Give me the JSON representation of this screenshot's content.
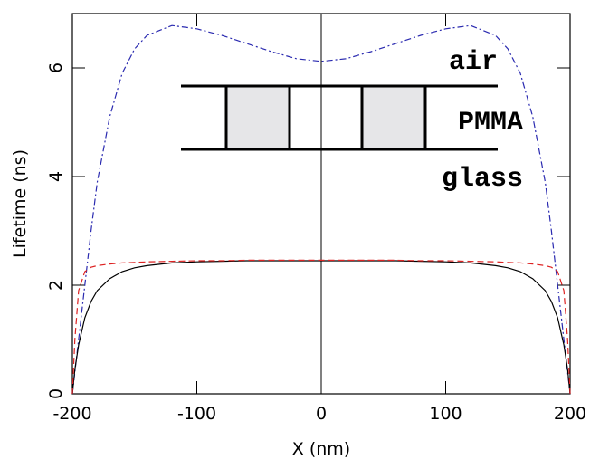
{
  "chart_data": {
    "type": "line",
    "xlabel": "X (nm)",
    "ylabel": "Lifetime (ns)",
    "x": [
      -200,
      -198,
      -195,
      -190,
      -185,
      -180,
      -170,
      -160,
      -150,
      -140,
      -120,
      -100,
      -80,
      -60,
      -40,
      -20,
      0,
      20,
      40,
      60,
      80,
      100,
      120,
      140,
      150,
      160,
      170,
      180,
      185,
      190,
      195,
      198,
      200
    ],
    "series": [
      {
        "color": "#2a2ab0",
        "dash": "dashdot",
        "values": [
          0,
          0.4,
          1.0,
          2.0,
          3.0,
          3.9,
          5.1,
          5.9,
          6.35,
          6.6,
          6.78,
          6.72,
          6.6,
          6.45,
          6.3,
          6.17,
          6.12,
          6.17,
          6.3,
          6.45,
          6.6,
          6.72,
          6.78,
          6.6,
          6.35,
          5.9,
          5.1,
          3.9,
          3.0,
          2.0,
          1.0,
          0.4,
          0
        ]
      },
      {
        "color": "#000000",
        "dash": "solid",
        "values": [
          0,
          0.45,
          0.9,
          1.4,
          1.7,
          1.9,
          2.12,
          2.25,
          2.32,
          2.36,
          2.41,
          2.43,
          2.44,
          2.45,
          2.45,
          2.45,
          2.45,
          2.45,
          2.45,
          2.45,
          2.44,
          2.43,
          2.41,
          2.36,
          2.32,
          2.25,
          2.12,
          1.9,
          1.7,
          1.4,
          0.9,
          0.45,
          0
        ]
      },
      {
        "color": "#dd2222",
        "dash": "dashed",
        "values": [
          0,
          1.0,
          1.9,
          2.25,
          2.33,
          2.36,
          2.39,
          2.41,
          2.42,
          2.43,
          2.44,
          2.45,
          2.45,
          2.46,
          2.46,
          2.46,
          2.46,
          2.46,
          2.46,
          2.46,
          2.45,
          2.45,
          2.44,
          2.43,
          2.42,
          2.41,
          2.39,
          2.36,
          2.33,
          2.25,
          1.9,
          1.0,
          0
        ]
      }
    ],
    "xlim": [
      -200,
      200
    ],
    "xticks": [
      -200,
      -100,
      0,
      100,
      200
    ],
    "ylim": [
      0,
      7
    ],
    "yticks": [
      0,
      2,
      4,
      6
    ],
    "annotations": [
      "air",
      "PMMA",
      "glass"
    ]
  }
}
